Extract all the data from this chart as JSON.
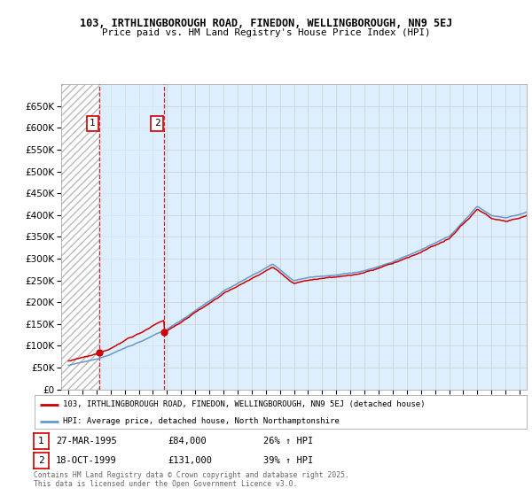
{
  "title1": "103, IRTHLINGBOROUGH ROAD, FINEDON, WELLINGBOROUGH, NN9 5EJ",
  "title2": "Price paid vs. HM Land Registry's House Price Index (HPI)",
  "legend_line1": "103, IRTHLINGBOROUGH ROAD, FINEDON, WELLINGBOROUGH, NN9 5EJ (detached house)",
  "legend_line2": "HPI: Average price, detached house, North Northamptonshire",
  "footer": "Contains HM Land Registry data © Crown copyright and database right 2025.\nThis data is licensed under the Open Government Licence v3.0.",
  "sale1_label": "1",
  "sale1_date": "27-MAR-1995",
  "sale1_price": "£84,000",
  "sale1_hpi": "26% ↑ HPI",
  "sale1_year": 1995.23,
  "sale1_value": 84000,
  "sale2_label": "2",
  "sale2_date": "18-OCT-1999",
  "sale2_price": "£131,000",
  "sale2_hpi": "39% ↑ HPI",
  "sale2_year": 1999.79,
  "sale2_value": 131000,
  "price_color": "#cc0000",
  "hpi_color": "#6699cc",
  "background_color": "#ffffff",
  "plot_bg_color": "#ddeeff",
  "ylim_min": 0,
  "ylim_max": 700000,
  "yticks": [
    0,
    50000,
    100000,
    150000,
    200000,
    250000,
    300000,
    350000,
    400000,
    450000,
    500000,
    550000,
    600000,
    650000
  ],
  "xlim_min": 1992.5,
  "xlim_max": 2025.5
}
